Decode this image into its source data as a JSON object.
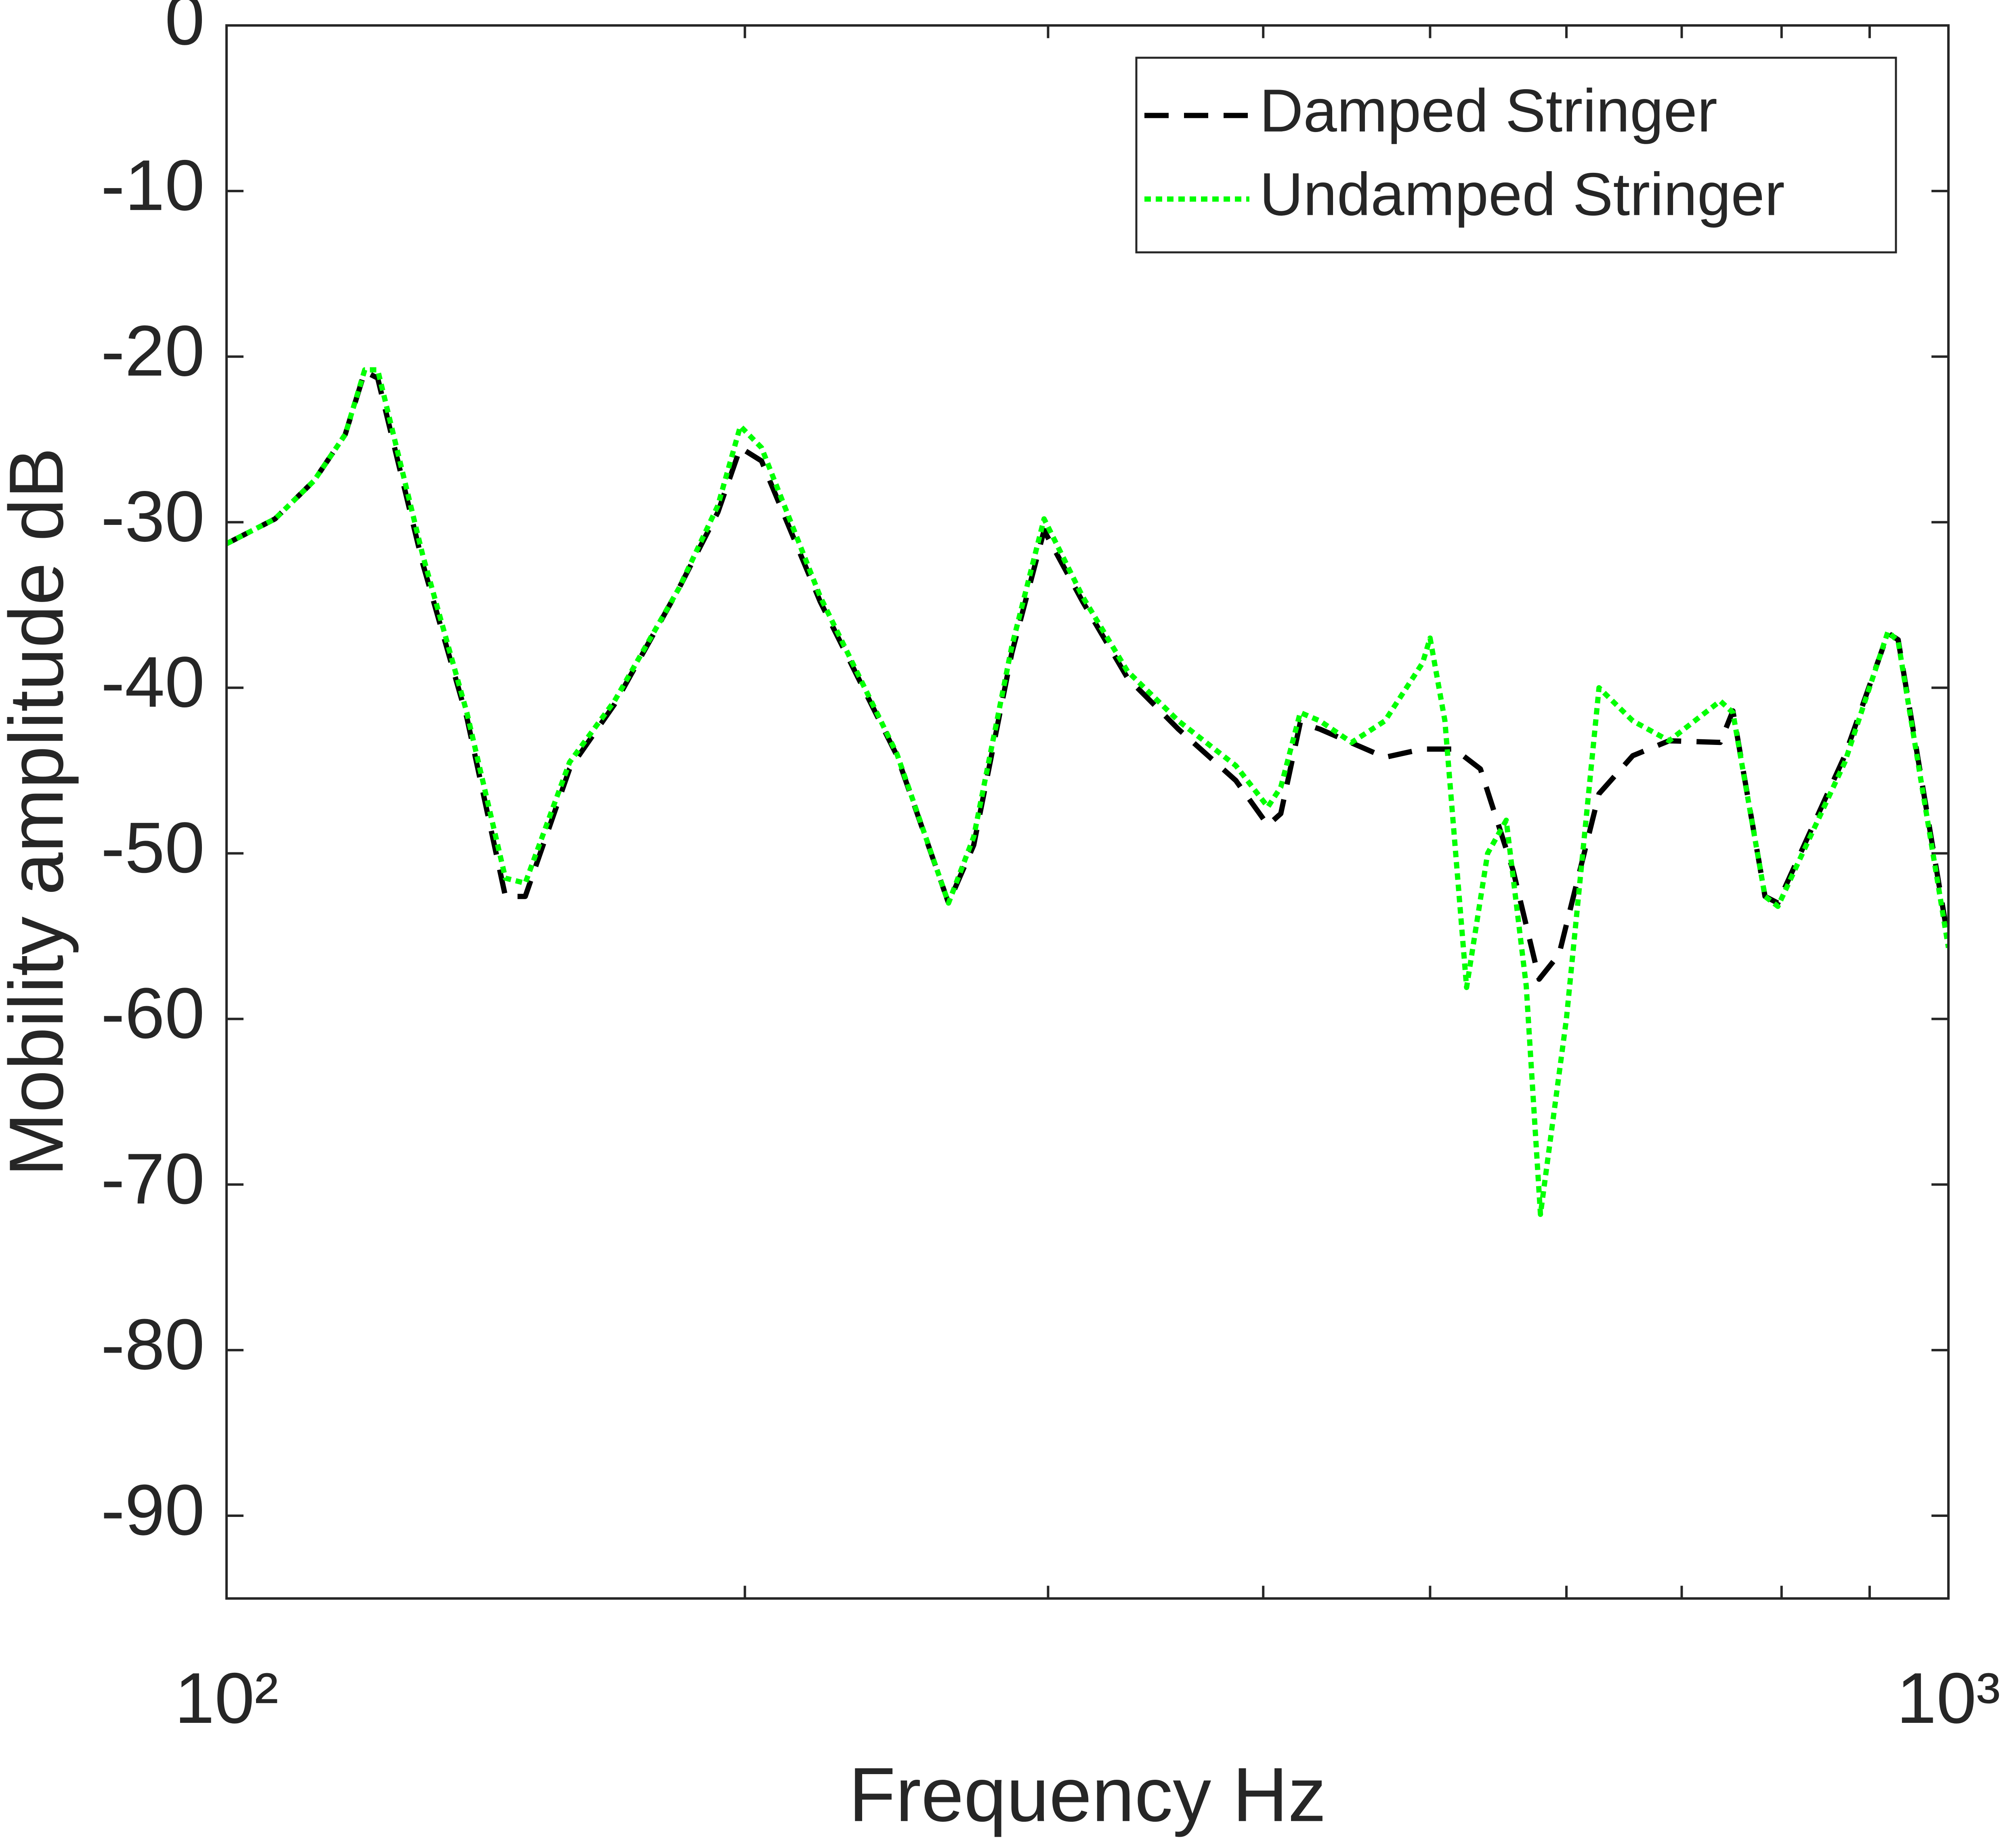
{
  "chart_data": {
    "type": "line",
    "xlabel": "Frequency Hz",
    "ylabel": "Mobility amplitude dB",
    "xscale": "log",
    "xlim": [
      100,
      1000
    ],
    "xticks": [
      {
        "value": 100,
        "label": "10²"
      },
      {
        "value": 1000,
        "label": "10³"
      }
    ],
    "xminorticks": [
      200,
      300,
      400,
      500,
      600,
      700,
      800,
      900
    ],
    "ylim": [
      -95,
      0
    ],
    "yticks": [
      -90,
      -80,
      -70,
      -60,
      -50,
      -40,
      -30,
      -20,
      -10,
      0
    ],
    "grid": false,
    "legend": "upper right",
    "series": [
      {
        "name": "Damped Stringer",
        "color": "#000000",
        "linestyle": "dashed",
        "x": [
          100,
          106.7,
          112.4,
          117.2,
          120.3,
          122.4,
          130,
          137.9,
          145.2,
          149.1,
          158.2,
          168,
          183.1,
          192.9,
          198.8,
          204.5,
          221.2,
          245.1,
          262.6,
          271.6,
          285.8,
          298.4,
          314.2,
          333.6,
          357.1,
          385.6,
          402.5,
          409.5,
          420.3,
          431.5,
          470.7,
          495,
          516.6,
          534.8,
          558.6,
          578.5,
          594.1,
          626.7,
          655.7,
          688.3,
          737,
          749.6,
          782.5,
          796.1,
          870.6,
          922.4,
          935,
          1000
        ],
        "values": [
          -31.3,
          -29.8,
          -27.5,
          -24.7,
          -20.9,
          -21.3,
          -32.5,
          -41.8,
          -52.6,
          -52.6,
          -44.9,
          -41,
          -34,
          -29.4,
          -25.5,
          -26.3,
          -34.8,
          -44.1,
          -53,
          -49.5,
          -37.9,
          -30.5,
          -34.8,
          -39.4,
          -42.5,
          -45.6,
          -48.3,
          -47.6,
          -42.1,
          -42.5,
          -44.2,
          -43.7,
          -43.7,
          -44.9,
          -51,
          -57.6,
          -56.1,
          -46.4,
          -44.1,
          -43.2,
          -43.3,
          -41.4,
          -52.6,
          -53,
          -44.1,
          -36.7,
          -37.1,
          -55.3
        ]
      },
      {
        "name": "Undamped Stringer",
        "color": "#00ff00",
        "linestyle": "dotted",
        "x": [
          100,
          106.7,
          112.4,
          117.2,
          120.3,
          122.4,
          130,
          137.9,
          145.2,
          149.1,
          158.2,
          168,
          183.1,
          192.9,
          198.8,
          204.5,
          221.2,
          245.1,
          262.6,
          271.6,
          285.8,
          298.4,
          314.2,
          333.6,
          357.1,
          385.6,
          402.5,
          409.5,
          420.3,
          431.5,
          450.2,
          470.7,
          495,
          500,
          510,
          525,
          540,
          553.6,
          568.6,
          579.5,
          600,
          626.7,
          655.7,
          688.3,
          737,
          749.6,
          782.5,
          796.1,
          870.6,
          922.4,
          935,
          1000
        ],
        "values": [
          -31.3,
          -29.8,
          -27.5,
          -24.7,
          -20.8,
          -20.8,
          -32,
          -41.5,
          -51.5,
          -51.8,
          -44.5,
          -40.8,
          -34,
          -29,
          -24.2,
          -25.5,
          -34.5,
          -44,
          -53,
          -49,
          -37.5,
          -29.8,
          -34.5,
          -39,
          -42,
          -44.7,
          -47.2,
          -46,
          -41.5,
          -42,
          -43.3,
          -42,
          -38.5,
          -37,
          -42,
          -58.1,
          -50,
          -48,
          -58,
          -71.8,
          -60,
          -40,
          -42,
          -43.2,
          -40.8,
          -41.5,
          -52.6,
          -53.2,
          -44.5,
          -36.6,
          -37.2,
          -55.7
        ]
      }
    ]
  }
}
